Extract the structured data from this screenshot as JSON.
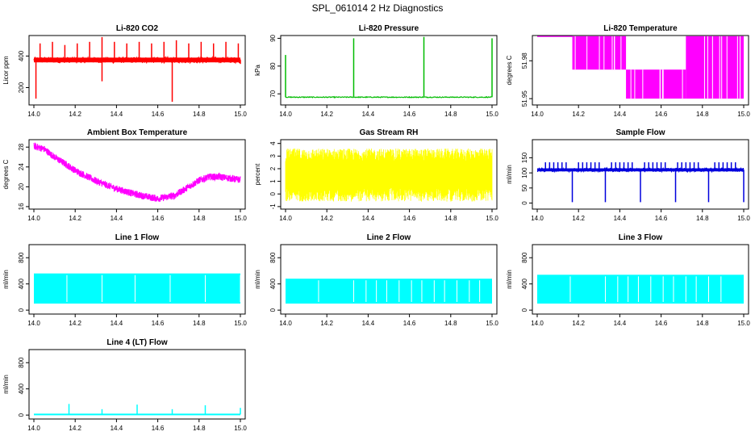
{
  "page_title": "SPL_061014  2 Hz Diagnostics",
  "chart_data": [
    {
      "type": "line",
      "title": "Li-820 CO2",
      "ylabel": "Licor ppm",
      "color": "#ff0000",
      "xlim": [
        14.0,
        15.0
      ],
      "xticks": [
        "14.0",
        "14.2",
        "14.4",
        "14.6",
        "14.8",
        "15.0"
      ],
      "ylim": [
        90,
        530
      ],
      "yticks": [
        200,
        400
      ],
      "series": [
        {
          "kind": "band",
          "base": 375,
          "noise": 15,
          "spikes": [
            [
              14.03,
              480
            ],
            [
              14.09,
              490
            ],
            [
              14.15,
              470
            ],
            [
              14.21,
              480
            ],
            [
              14.27,
              490
            ],
            [
              14.33,
              520
            ],
            [
              14.39,
              490
            ],
            [
              14.45,
              480
            ],
            [
              14.51,
              490
            ],
            [
              14.57,
              480
            ],
            [
              14.63,
              490
            ],
            [
              14.69,
              500
            ],
            [
              14.75,
              480
            ],
            [
              14.81,
              490
            ],
            [
              14.87,
              480
            ],
            [
              14.93,
              490
            ],
            [
              14.99,
              480
            ]
          ],
          "dips": [
            [
              14.01,
              130
            ],
            [
              14.33,
              240
            ],
            [
              14.67,
              110
            ],
            [
              15.0,
              350
            ]
          ]
        }
      ]
    },
    {
      "type": "line",
      "title": "Li-820 Pressure",
      "ylabel": "kPa",
      "color": "#00bb00",
      "xlim": [
        14.0,
        15.0
      ],
      "xticks": [
        "14.0",
        "14.2",
        "14.4",
        "14.6",
        "14.8",
        "15.0"
      ],
      "ylim": [
        66,
        91
      ],
      "yticks": [
        70,
        80,
        90
      ],
      "series": [
        {
          "kind": "decay",
          "base": 68.8,
          "noise": 0.15,
          "spikes": [
            [
              14.0,
              84
            ],
            [
              14.33,
              90
            ],
            [
              14.67,
              90.5
            ],
            [
              15.0,
              90
            ]
          ]
        }
      ]
    },
    {
      "type": "area",
      "title": "Li-820 Temperature",
      "ylabel": "degrees C",
      "color": "#ff00ff",
      "xlim": [
        14.0,
        15.0
      ],
      "xticks": [
        "14.0",
        "14.2",
        "14.4",
        "14.6",
        "14.8",
        "15.0"
      ],
      "ylim": [
        51.945,
        52.0
      ],
      "yticks": [
        51.95,
        51.98
      ],
      "series": [
        {
          "kind": "steps",
          "top": 51.9995,
          "low": 51.95,
          "mid": 51.973,
          "segments": [
            [
              14.0,
              14.17,
              "top"
            ],
            [
              14.17,
              14.43,
              "band_top_mid"
            ],
            [
              14.43,
              14.72,
              "band_mid_low"
            ],
            [
              14.72,
              15.0,
              "band_top_low"
            ]
          ]
        }
      ]
    },
    {
      "type": "line",
      "title": "Ambient Box Temperature",
      "ylabel": "degrees C",
      "color": "#ff00ff",
      "xlim": [
        14.0,
        15.0
      ],
      "xticks": [
        "14.0",
        "14.2",
        "14.4",
        "14.6",
        "14.8",
        "15.0"
      ],
      "ylim": [
        15.5,
        29.5
      ],
      "yticks": [
        16,
        20,
        24,
        28
      ],
      "series": [
        {
          "kind": "curve",
          "noise": 0.7,
          "points": [
            [
              14.0,
              28.2
            ],
            [
              14.05,
              27.6
            ],
            [
              14.1,
              26.0
            ],
            [
              14.2,
              23.3
            ],
            [
              14.3,
              21.2
            ],
            [
              14.4,
              19.6
            ],
            [
              14.5,
              18.4
            ],
            [
              14.6,
              17.6
            ],
            [
              14.68,
              18.2
            ],
            [
              14.75,
              20.0
            ],
            [
              14.8,
              21.3
            ],
            [
              14.85,
              22.0
            ],
            [
              14.9,
              22.0
            ],
            [
              15.0,
              21.4
            ]
          ]
        }
      ]
    },
    {
      "type": "area",
      "title": "Gas Stream RH",
      "ylabel": "percent",
      "color": "#ffff00",
      "xlim": [
        14.0,
        15.0
      ],
      "xticks": [
        "14.0",
        "14.2",
        "14.4",
        "14.6",
        "14.8",
        "15.0"
      ],
      "ylim": [
        -1.2,
        4.3
      ],
      "yticks": [
        -1,
        0,
        1,
        2,
        3,
        4
      ],
      "series": [
        {
          "kind": "noiseband",
          "low": -0.6,
          "high": 3.6,
          "core_low": 0.5,
          "core_high": 2.6
        }
      ]
    },
    {
      "type": "line",
      "title": "Sample Flow",
      "ylabel": "ml/min",
      "color": "#0000dd",
      "xlim": [
        14.0,
        15.0
      ],
      "xticks": [
        "14.0",
        "14.2",
        "14.4",
        "14.6",
        "14.8",
        "15.0"
      ],
      "ylim": [
        -20,
        210
      ],
      "yticks": [
        0,
        50,
        100,
        150
      ],
      "series": [
        {
          "kind": "band",
          "base": 110,
          "noise": 5,
          "spikes": [
            [
              14.04,
              135
            ],
            [
              14.06,
              135
            ],
            [
              14.08,
              135
            ],
            [
              14.1,
              135
            ],
            [
              14.12,
              135
            ],
            [
              14.14,
              135
            ],
            [
              14.2,
              135
            ],
            [
              14.22,
              135
            ],
            [
              14.24,
              135
            ],
            [
              14.26,
              135
            ],
            [
              14.28,
              135
            ],
            [
              14.3,
              135
            ],
            [
              14.36,
              135
            ],
            [
              14.38,
              135
            ],
            [
              14.4,
              135
            ],
            [
              14.42,
              135
            ],
            [
              14.44,
              135
            ],
            [
              14.46,
              135
            ],
            [
              14.52,
              135
            ],
            [
              14.54,
              135
            ],
            [
              14.56,
              135
            ],
            [
              14.58,
              135
            ],
            [
              14.6,
              135
            ],
            [
              14.62,
              135
            ],
            [
              14.68,
              135
            ],
            [
              14.7,
              135
            ],
            [
              14.72,
              135
            ],
            [
              14.74,
              135
            ],
            [
              14.76,
              135
            ],
            [
              14.78,
              135
            ],
            [
              14.86,
              135
            ],
            [
              14.88,
              135
            ],
            [
              14.9,
              135
            ],
            [
              14.92,
              135
            ],
            [
              14.94,
              135
            ],
            [
              14.96,
              135
            ]
          ],
          "dips": [
            [
              14.17,
              3
            ],
            [
              14.33,
              3
            ],
            [
              14.5,
              3
            ],
            [
              14.67,
              3
            ],
            [
              14.83,
              3
            ],
            [
              15.0,
              3
            ]
          ]
        }
      ]
    },
    {
      "type": "area",
      "title": "Line 1 Flow",
      "ylabel": "ml/min",
      "color": "#00ffff",
      "xlim": [
        14.0,
        15.0
      ],
      "xticks": [
        "14.0",
        "14.2",
        "14.4",
        "14.6",
        "14.8",
        "15.0"
      ],
      "ylim": [
        -60,
        1000
      ],
      "yticks": [
        0,
        400,
        800
      ],
      "series": [
        {
          "kind": "block",
          "low": 100,
          "high": 560,
          "gaps": [
            14.16,
            14.33,
            14.49,
            14.66,
            14.83,
            15.0
          ]
        }
      ]
    },
    {
      "type": "area",
      "title": "Line 2 Flow",
      "ylabel": "ml/min",
      "color": "#00ffff",
      "xlim": [
        14.0,
        15.0
      ],
      "xticks": [
        "14.0",
        "14.2",
        "14.4",
        "14.6",
        "14.8",
        "15.0"
      ],
      "ylim": [
        -60,
        1000
      ],
      "yticks": [
        0,
        400,
        800
      ],
      "series": [
        {
          "kind": "block",
          "low": 100,
          "high": 480,
          "gaps": [
            14.16,
            14.33,
            14.39,
            14.44,
            14.49,
            14.55,
            14.61,
            14.66,
            14.72,
            14.77,
            14.83,
            14.89,
            14.94
          ]
        }
      ]
    },
    {
      "type": "area",
      "title": "Line 3 Flow",
      "ylabel": "ml/min",
      "color": "#00ffff",
      "xlim": [
        14.0,
        15.0
      ],
      "xticks": [
        "14.0",
        "14.2",
        "14.4",
        "14.6",
        "14.8",
        "15.0"
      ],
      "ylim": [
        -60,
        1000
      ],
      "yticks": [
        0,
        400,
        800
      ],
      "series": [
        {
          "kind": "block",
          "low": 100,
          "high": 540,
          "gaps": [
            14.16,
            14.33,
            14.39,
            14.44,
            14.49,
            14.55,
            14.61,
            14.66,
            14.72,
            14.77,
            14.83,
            14.89
          ]
        }
      ]
    },
    {
      "type": "line",
      "title": "Line 4 (LT) Flow",
      "ylabel": "ml/min",
      "color": "#00ffff",
      "xlim": [
        14.0,
        15.0
      ],
      "xticks": [
        "14.0",
        "14.2",
        "14.4",
        "14.6",
        "14.8",
        "15.0"
      ],
      "ylim": [
        -60,
        1000
      ],
      "yticks": [
        0,
        400,
        800
      ],
      "series": [
        {
          "kind": "flatline",
          "base": 10,
          "spikes": [
            [
              14.17,
              170
            ],
            [
              14.33,
              90
            ],
            [
              14.5,
              160
            ],
            [
              14.67,
              90
            ],
            [
              14.83,
              150
            ],
            [
              15.0,
              110
            ]
          ]
        }
      ]
    }
  ]
}
